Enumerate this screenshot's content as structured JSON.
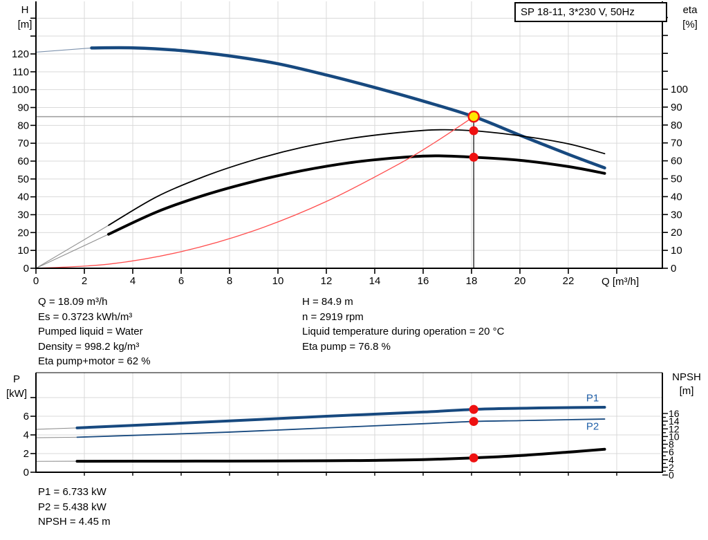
{
  "title_box": {
    "text": "SP 18-11, 3*230 V, 50Hz"
  },
  "axis_titles": {
    "h_line1": "H",
    "h_line2": "[m]",
    "eta_line1": "eta",
    "eta_line2": "[%]",
    "q": "Q [m³/h]",
    "p_line1": "P",
    "p_line2": "[kW]",
    "npsh_line1": "NPSH",
    "npsh_line2": "[m]"
  },
  "info": {
    "left": [
      "Q = 18.09 m³/h",
      "Es = 0.3723 kWh/m³",
      "Pumped liquid = Water",
      "Density = 998.2 kg/m³",
      "Eta pump+motor = 62 %"
    ],
    "right": [
      "H = 84.9 m",
      "n = 2919 rpm",
      "Liquid temperature during operation = 20 °C",
      "Eta pump = 76.8 %"
    ],
    "bottom": [
      "P1 = 6.733 kW",
      "P2 = 5.438 kW",
      "NPSH = 4.45 m"
    ]
  },
  "colors": {
    "blue": "#17497f",
    "curve_black": "#000000",
    "red_curve": "#ff4d4d",
    "marker_red": "#ee1111",
    "marker_yellow": "#ffe600",
    "grid": "#d9d9d9",
    "gray_line": "#a0a0a0",
    "lead_gray": "#8f8f8f",
    "lead_blue": "#7d92ad",
    "label_blue": "#1f5fa8"
  },
  "chart_data": [
    {
      "id": "qh-eta",
      "type": "line",
      "xlabel": "Q [m³/h]",
      "ylabel_left": "H [m]",
      "ylabel_right": "eta [%]",
      "x_ticks": [
        0,
        2,
        4,
        6,
        8,
        10,
        12,
        14,
        16,
        18,
        20,
        22
      ],
      "x_extra_ticks": [
        24
      ],
      "h_ticks": [
        0,
        10,
        20,
        30,
        40,
        50,
        60,
        70,
        80,
        90,
        100,
        110,
        120
      ],
      "h_extra_ticks": [
        130,
        140
      ],
      "eta_ticks": [
        0,
        10,
        20,
        30,
        40,
        50,
        60,
        70,
        80,
        90,
        100
      ],
      "eta_extra_ticks": [
        110,
        120,
        130,
        140
      ],
      "grid_x": [
        2,
        4,
        6,
        8,
        10,
        12,
        14,
        16,
        18,
        20,
        22,
        24
      ],
      "grid_h": [
        10,
        20,
        30,
        40,
        50,
        60,
        70,
        80,
        90,
        100,
        110,
        120,
        130,
        140
      ],
      "series": [
        {
          "name": "head-curve",
          "axis": "h",
          "color_key": "blue",
          "width": 4.5,
          "lead_color_key": "lead_blue",
          "lead": [
            [
              0,
              121
            ],
            [
              2.3,
              123.35
            ]
          ],
          "points": [
            [
              2.3,
              123.35
            ],
            [
              4,
              123.4
            ],
            [
              6,
              121.9
            ],
            [
              8,
              118.9
            ],
            [
              10,
              114.5
            ],
            [
              12,
              108.2
            ],
            [
              14,
              101.2
            ],
            [
              16,
              93.6
            ],
            [
              18.09,
              84.9
            ],
            [
              20,
              74.5
            ],
            [
              22,
              63.8
            ],
            [
              23.5,
              56.2
            ]
          ]
        },
        {
          "name": "eta-pump-curve",
          "axis": "eta",
          "color_key": "curve_black",
          "width": 1.8,
          "lead_color_key": "lead_gray",
          "lead": [
            [
              0,
              0
            ],
            [
              3,
              24
            ]
          ],
          "points": [
            [
              3,
              24
            ],
            [
              5,
              40
            ],
            [
              7,
              51.5
            ],
            [
              9,
              60.5
            ],
            [
              11,
              67.5
            ],
            [
              13,
              72.5
            ],
            [
              15,
              75.8
            ],
            [
              16.5,
              77.3
            ],
            [
              18.09,
              76.8
            ],
            [
              20,
              74
            ],
            [
              22,
              69.5
            ],
            [
              23.5,
              64
            ]
          ]
        },
        {
          "name": "eta-pump-motor-curve",
          "axis": "eta",
          "color_key": "curve_black",
          "width": 4,
          "lead_color_key": "lead_gray",
          "lead": [
            [
              0,
              0
            ],
            [
              3,
              19
            ]
          ],
          "points": [
            [
              3,
              19
            ],
            [
              5,
              31.5
            ],
            [
              7,
              41
            ],
            [
              9,
              48.5
            ],
            [
              11,
              54.5
            ],
            [
              13,
              59
            ],
            [
              15,
              61.8
            ],
            [
              16.5,
              62.8
            ],
            [
              18.09,
              62
            ],
            [
              20,
              60.3
            ],
            [
              22,
              56.8
            ],
            [
              23.5,
              53
            ]
          ]
        },
        {
          "name": "system-curve",
          "axis": "h",
          "color_key": "red_curve",
          "width": 1.3,
          "points": [
            [
              0,
              0
            ],
            [
              3,
              2.3
            ],
            [
              6,
              9.3
            ],
            [
              9,
              21
            ],
            [
              12,
              37.4
            ],
            [
              15,
              58.4
            ],
            [
              16.5,
              70.6
            ],
            [
              18.09,
              84.9
            ]
          ]
        }
      ],
      "duty_point": {
        "q": 18.09,
        "h": 84.9,
        "eta_pump": 76.8,
        "eta_pump_motor": 62
      }
    },
    {
      "id": "power-npsh",
      "type": "line",
      "xlabel": "",
      "ylabel_left": "P [kW]",
      "ylabel_right": "NPSH [m]",
      "p_ticks": [
        0,
        2,
        4,
        6,
        8
      ],
      "p_tick_labels": [
        0,
        2,
        4,
        6
      ],
      "npsh_ticks": [
        0,
        1,
        2,
        3,
        4,
        5,
        6,
        7,
        8,
        9,
        10,
        11,
        12,
        13,
        14,
        15,
        16
      ],
      "npsh_tick_labels": [
        0,
        2,
        4,
        6,
        8,
        10,
        12,
        14,
        16
      ],
      "grid_x": [
        2,
        4,
        6,
        8,
        10,
        12,
        14,
        16,
        18,
        20,
        22,
        24
      ],
      "grid_p": [
        2,
        4,
        6,
        8
      ],
      "series": [
        {
          "name": "p1-curve",
          "axis": "p",
          "color_key": "blue",
          "width": 4,
          "lead_color_key": "lead_gray",
          "lead": [
            [
              0,
              4.6
            ],
            [
              1.7,
              4.75
            ]
          ],
          "points": [
            [
              1.7,
              4.75
            ],
            [
              4,
              5.02
            ],
            [
              8,
              5.5
            ],
            [
              12,
              6.0
            ],
            [
              16,
              6.45
            ],
            [
              18.09,
              6.733
            ],
            [
              20,
              6.85
            ],
            [
              22,
              6.93
            ],
            [
              23.5,
              6.96
            ]
          ]
        },
        {
          "name": "p2-curve",
          "axis": "p",
          "color_key": "blue",
          "width": 1.8,
          "lead_color_key": "lead_gray",
          "lead": [
            [
              0,
              3.7
            ],
            [
              1.7,
              3.75
            ]
          ],
          "points": [
            [
              1.7,
              3.75
            ],
            [
              4,
              3.95
            ],
            [
              8,
              4.3
            ],
            [
              12,
              4.75
            ],
            [
              16,
              5.2
            ],
            [
              18.09,
              5.438
            ],
            [
              20,
              5.53
            ],
            [
              22,
              5.63
            ],
            [
              23.5,
              5.7
            ]
          ]
        },
        {
          "name": "npsh-curve",
          "axis": "npsh",
          "color_key": "curve_black",
          "width": 4,
          "lead_color_key": "lead_gray",
          "lead": [
            [
              0,
              3.55
            ],
            [
              1.7,
              3.58
            ]
          ],
          "points": [
            [
              1.7,
              3.58
            ],
            [
              4,
              3.6
            ],
            [
              8,
              3.62
            ],
            [
              12,
              3.7
            ],
            [
              14,
              3.8
            ],
            [
              16,
              4.0
            ],
            [
              18.09,
              4.45
            ],
            [
              20,
              5.05
            ],
            [
              22,
              5.95
            ],
            [
              23.5,
              6.7
            ]
          ]
        }
      ],
      "curve_labels": [
        {
          "text": "P1",
          "q": 23.0,
          "p": 7.6,
          "name": "p1-curve-label"
        },
        {
          "text": "P2",
          "q": 23.0,
          "p": 4.55,
          "name": "p2-curve-label"
        }
      ],
      "duty_point": {
        "q": 18.09,
        "p1": 6.733,
        "p2": 5.438,
        "npsh": 4.45
      }
    }
  ]
}
